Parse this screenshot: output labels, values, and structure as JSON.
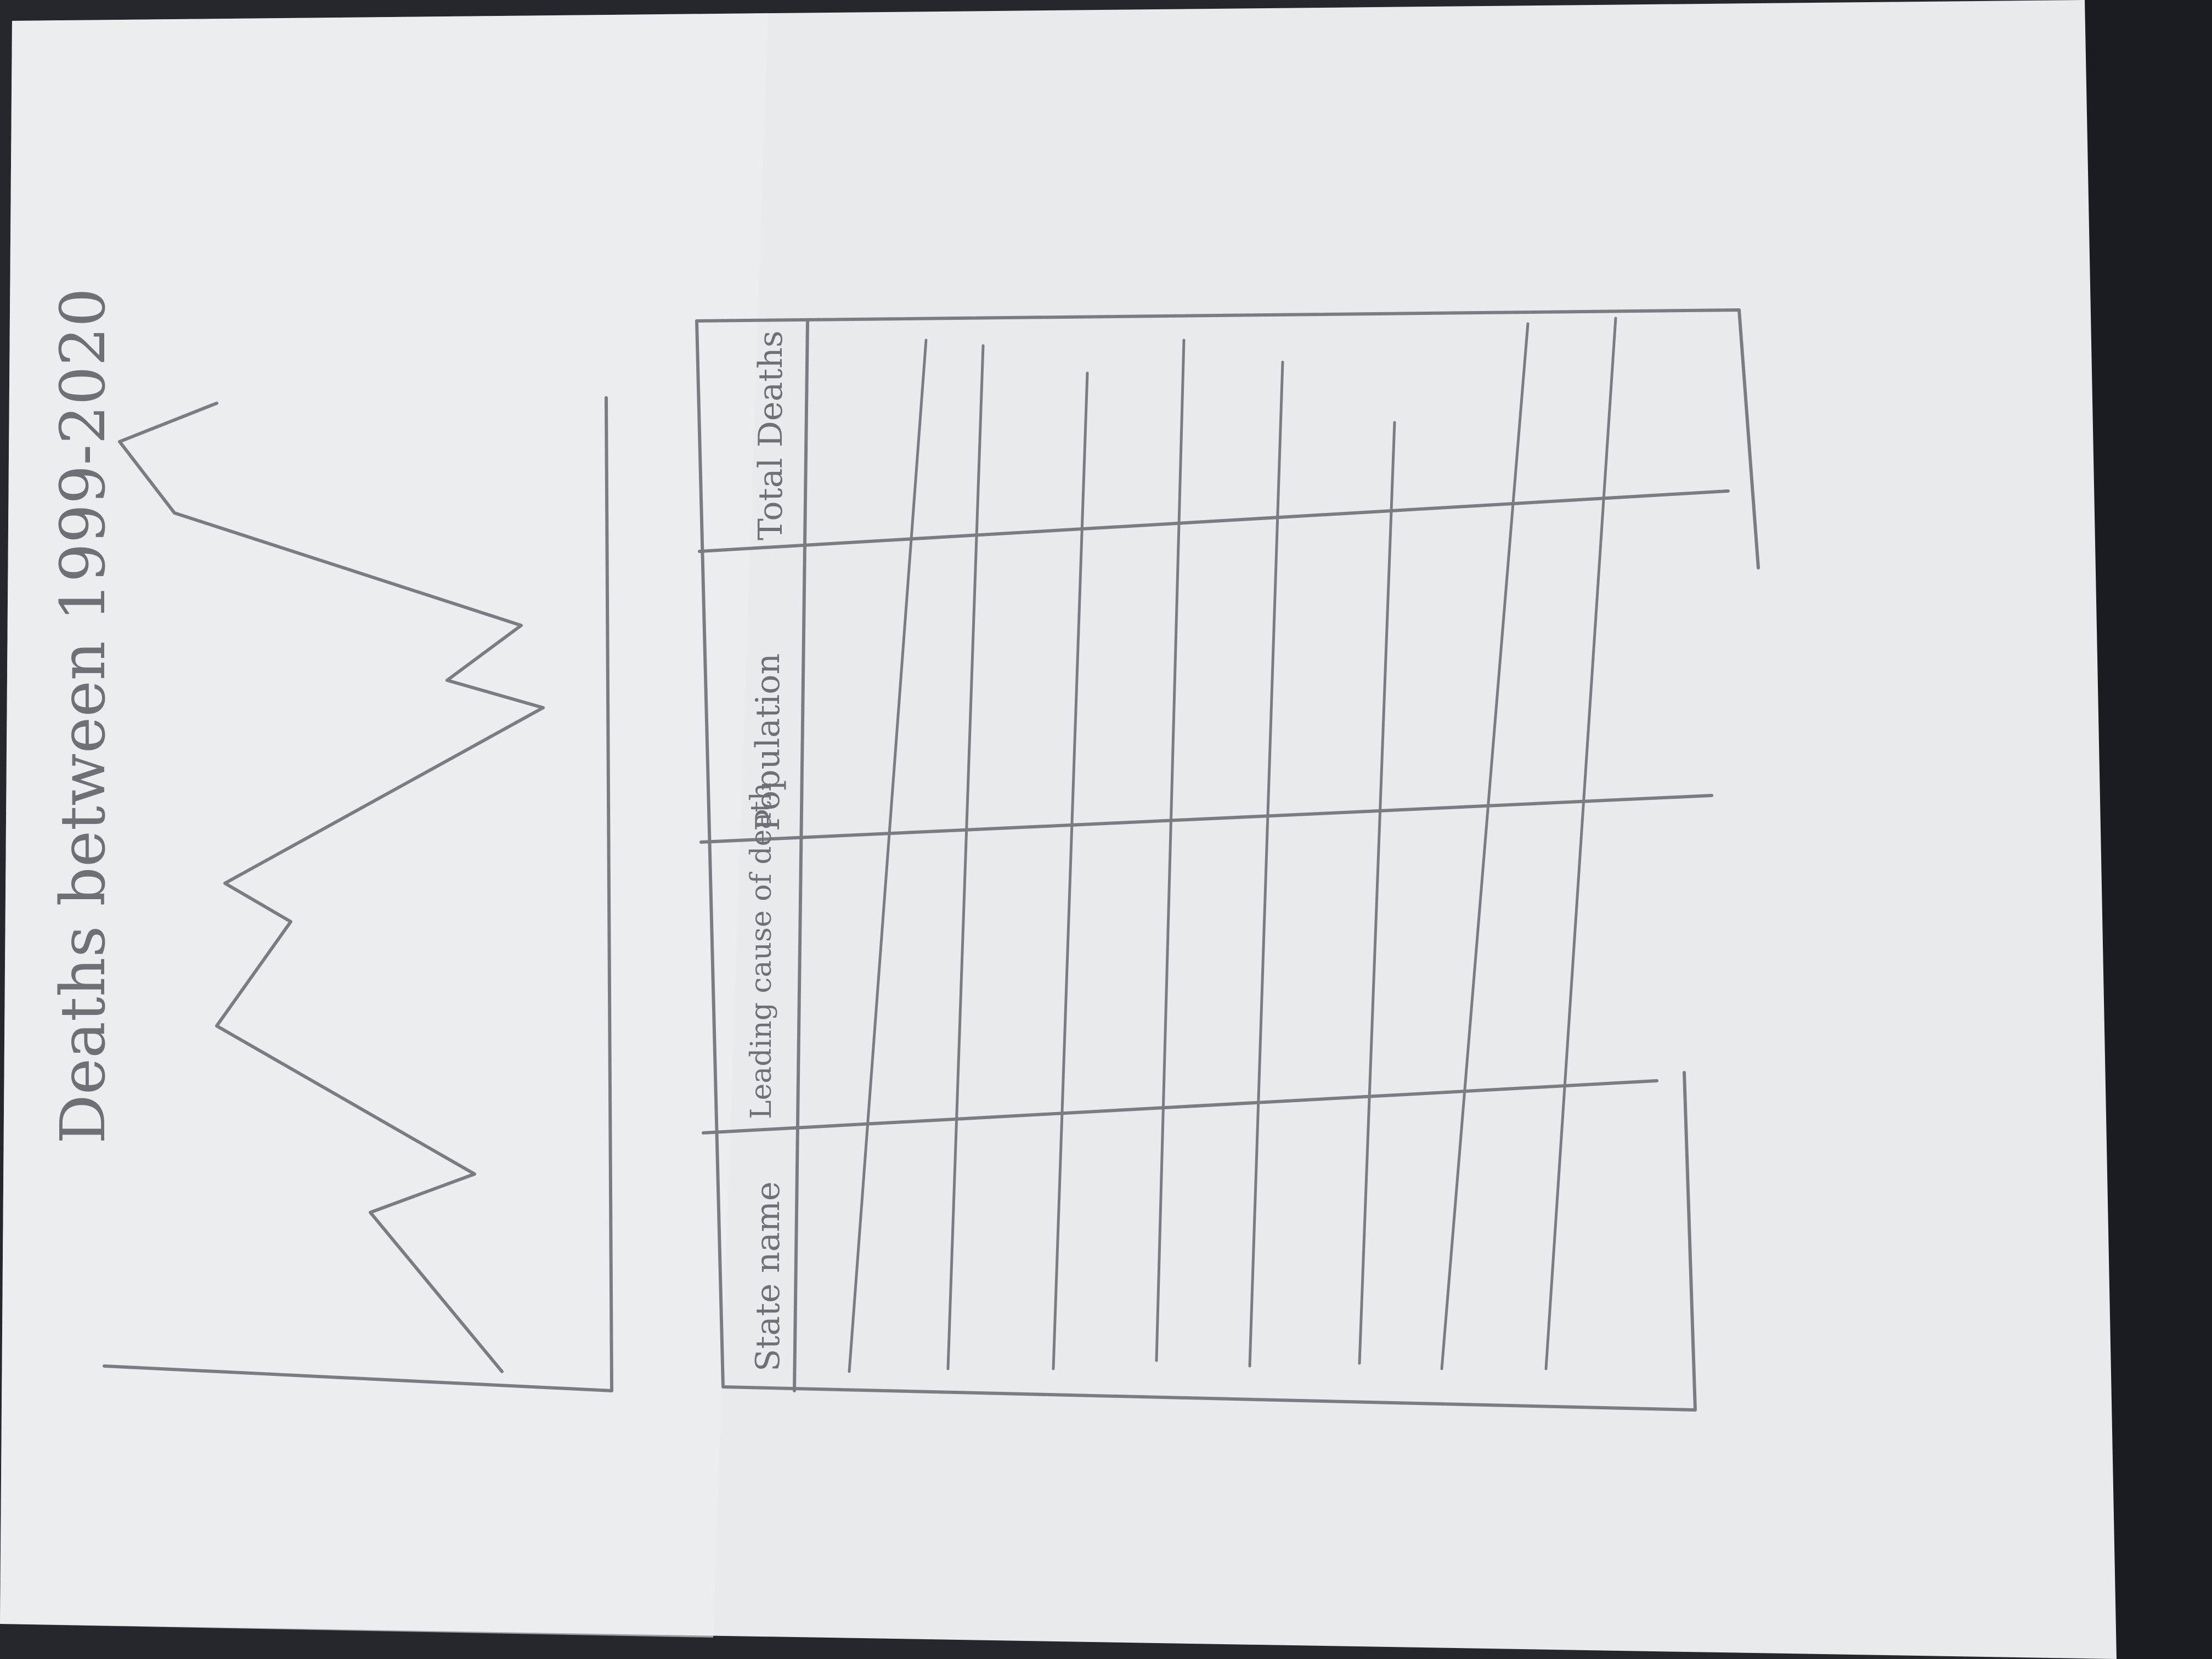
{
  "sketch": {
    "chart_title": "Deaths between 1999-2020",
    "table": {
      "headers": [
        "State name",
        "Leading cause of death",
        "Population",
        "Total Deaths"
      ]
    }
  }
}
